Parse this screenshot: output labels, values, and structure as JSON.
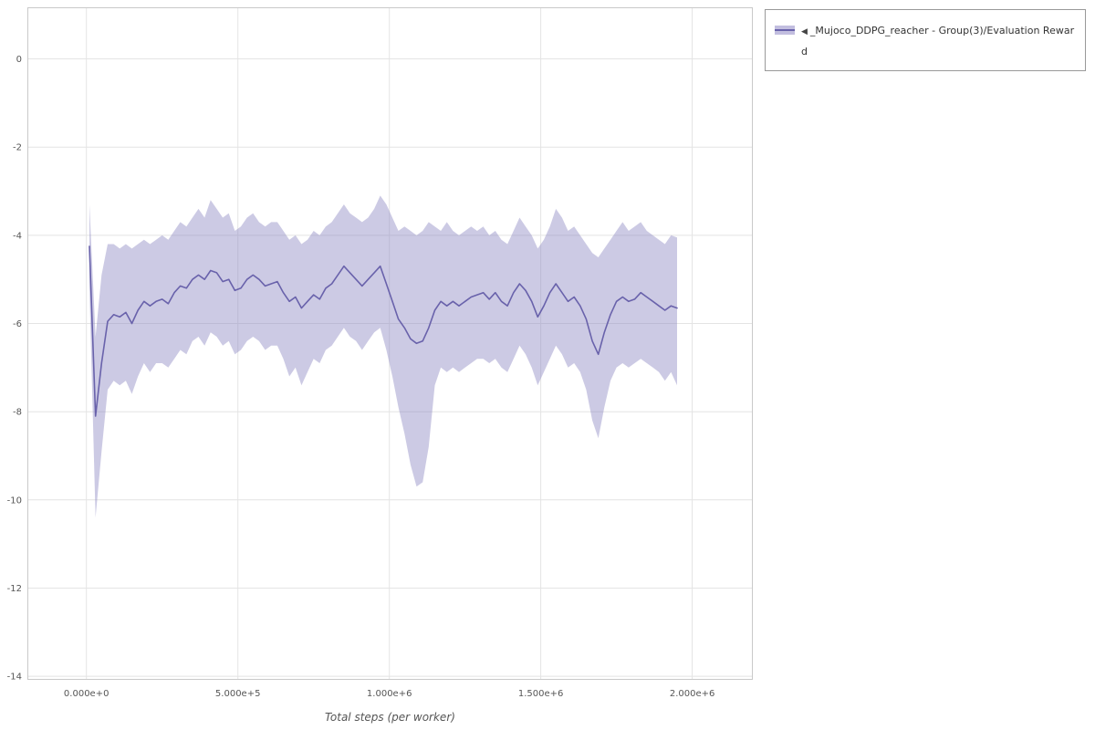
{
  "legend": {
    "arrow": "◀",
    "label": "_Mujoco_DDPG_reacher - Group(3)/Evaluation Reward"
  },
  "colors": {
    "line": "#6962ab",
    "band": "#8f89c4",
    "band_opacity": 0.45,
    "swatch_band_opacity": 0.55,
    "grid": "#e4e4e4",
    "border": "#c9c9c9",
    "tick_text": "#555555",
    "axis_title": "#555555",
    "legend_border": "#999999"
  },
  "chart_data": {
    "type": "line",
    "title": "",
    "xlabel": "Total steps (per worker)",
    "ylabel": "",
    "grid": true,
    "legend_position": "outside-top-right",
    "xlim": [
      -195000,
      2200000
    ],
    "ylim": [
      -14.08,
      1.17
    ],
    "x_ticks": [
      {
        "value": 0,
        "label": "0.000e+0"
      },
      {
        "value": 500000,
        "label": "5.000e+5"
      },
      {
        "value": 1000000,
        "label": "1.000e+6"
      },
      {
        "value": 1500000,
        "label": "1.500e+6"
      },
      {
        "value": 2000000,
        "label": "2.000e+6"
      }
    ],
    "y_ticks": [
      {
        "value": 0,
        "label": "0"
      },
      {
        "value": -2,
        "label": "-2"
      },
      {
        "value": -4,
        "label": "-4"
      },
      {
        "value": -6,
        "label": "-6"
      },
      {
        "value": -8,
        "label": "-8"
      },
      {
        "value": -10,
        "label": "-10"
      },
      {
        "value": -12,
        "label": "-12"
      },
      {
        "value": -14,
        "label": "-14"
      }
    ],
    "series": [
      {
        "name": "_Mujoco_DDPG_reacher - Group(3)/Evaluation Reward",
        "x": [
          10000,
          30000,
          50000,
          70000,
          90000,
          110000,
          130000,
          150000,
          170000,
          190000,
          210000,
          230000,
          250000,
          270000,
          290000,
          310000,
          330000,
          350000,
          370000,
          390000,
          410000,
          430000,
          450000,
          470000,
          490000,
          510000,
          530000,
          550000,
          570000,
          590000,
          610000,
          630000,
          650000,
          670000,
          690000,
          710000,
          730000,
          750000,
          770000,
          790000,
          810000,
          830000,
          850000,
          870000,
          890000,
          910000,
          930000,
          950000,
          970000,
          990000,
          1010000,
          1030000,
          1050000,
          1070000,
          1090000,
          1110000,
          1130000,
          1150000,
          1170000,
          1190000,
          1210000,
          1230000,
          1250000,
          1270000,
          1290000,
          1310000,
          1330000,
          1350000,
          1370000,
          1390000,
          1410000,
          1430000,
          1450000,
          1470000,
          1490000,
          1510000,
          1530000,
          1550000,
          1570000,
          1590000,
          1610000,
          1630000,
          1650000,
          1670000,
          1690000,
          1710000,
          1730000,
          1750000,
          1770000,
          1790000,
          1810000,
          1830000,
          1850000,
          1870000,
          1890000,
          1910000,
          1930000,
          1950000
        ],
        "mean": [
          -4.25,
          -8.1,
          -6.9,
          -5.95,
          -5.8,
          -5.85,
          -5.75,
          -6.0,
          -5.7,
          -5.5,
          -5.6,
          -5.5,
          -5.45,
          -5.55,
          -5.3,
          -5.15,
          -5.2,
          -5.0,
          -4.9,
          -5.0,
          -4.8,
          -4.85,
          -5.05,
          -5.0,
          -5.25,
          -5.2,
          -5.0,
          -4.9,
          -5.0,
          -5.15,
          -5.1,
          -5.05,
          -5.3,
          -5.5,
          -5.4,
          -5.65,
          -5.5,
          -5.35,
          -5.45,
          -5.2,
          -5.1,
          -4.9,
          -4.7,
          -4.85,
          -5.0,
          -5.15,
          -5.0,
          -4.85,
          -4.7,
          -5.1,
          -5.5,
          -5.9,
          -6.1,
          -6.35,
          -6.45,
          -6.4,
          -6.1,
          -5.7,
          -5.5,
          -5.6,
          -5.5,
          -5.6,
          -5.5,
          -5.4,
          -5.35,
          -5.3,
          -5.45,
          -5.3,
          -5.5,
          -5.6,
          -5.3,
          -5.1,
          -5.25,
          -5.5,
          -5.85,
          -5.6,
          -5.3,
          -5.1,
          -5.3,
          -5.5,
          -5.4,
          -5.6,
          -5.9,
          -6.4,
          -6.7,
          -6.2,
          -5.8,
          -5.5,
          -5.4,
          -5.5,
          -5.45,
          -5.3,
          -5.4,
          -5.5,
          -5.6,
          -5.7,
          -5.6,
          -5.65
        ],
        "upper": [
          -3.3,
          -6.3,
          -4.9,
          -4.2,
          -4.2,
          -4.3,
          -4.2,
          -4.3,
          -4.2,
          -4.1,
          -4.2,
          -4.1,
          -4.0,
          -4.1,
          -3.9,
          -3.7,
          -3.8,
          -3.6,
          -3.4,
          -3.6,
          -3.2,
          -3.4,
          -3.6,
          -3.5,
          -3.9,
          -3.8,
          -3.6,
          -3.5,
          -3.7,
          -3.8,
          -3.7,
          -3.7,
          -3.9,
          -4.1,
          -4.0,
          -4.2,
          -4.1,
          -3.9,
          -4.0,
          -3.8,
          -3.7,
          -3.5,
          -3.3,
          -3.5,
          -3.6,
          -3.7,
          -3.6,
          -3.4,
          -3.1,
          -3.3,
          -3.6,
          -3.9,
          -3.8,
          -3.9,
          -4.0,
          -3.9,
          -3.7,
          -3.8,
          -3.9,
          -3.7,
          -3.9,
          -4.0,
          -3.9,
          -3.8,
          -3.9,
          -3.8,
          -4.0,
          -3.9,
          -4.1,
          -4.2,
          -3.9,
          -3.6,
          -3.8,
          -4.0,
          -4.3,
          -4.1,
          -3.8,
          -3.4,
          -3.6,
          -3.9,
          -3.8,
          -4.0,
          -4.2,
          -4.4,
          -4.5,
          -4.3,
          -4.1,
          -3.9,
          -3.7,
          -3.9,
          -3.8,
          -3.7,
          -3.9,
          -4.0,
          -4.1,
          -4.2,
          -4.0,
          -4.05
        ],
        "lower": [
          -5.2,
          -10.4,
          -8.9,
          -7.5,
          -7.3,
          -7.4,
          -7.3,
          -7.6,
          -7.2,
          -6.9,
          -7.1,
          -6.9,
          -6.9,
          -7.0,
          -6.8,
          -6.6,
          -6.7,
          -6.4,
          -6.3,
          -6.5,
          -6.2,
          -6.3,
          -6.5,
          -6.4,
          -6.7,
          -6.6,
          -6.4,
          -6.3,
          -6.4,
          -6.6,
          -6.5,
          -6.5,
          -6.8,
          -7.2,
          -7.0,
          -7.4,
          -7.1,
          -6.8,
          -6.9,
          -6.6,
          -6.5,
          -6.3,
          -6.1,
          -6.3,
          -6.4,
          -6.6,
          -6.4,
          -6.2,
          -6.1,
          -6.6,
          -7.2,
          -7.9,
          -8.5,
          -9.2,
          -9.7,
          -9.6,
          -8.8,
          -7.4,
          -7.0,
          -7.1,
          -7.0,
          -7.1,
          -7.0,
          -6.9,
          -6.8,
          -6.8,
          -6.9,
          -6.8,
          -7.0,
          -7.1,
          -6.8,
          -6.5,
          -6.7,
          -7.0,
          -7.4,
          -7.1,
          -6.8,
          -6.5,
          -6.7,
          -7.0,
          -6.9,
          -7.1,
          -7.5,
          -8.2,
          -8.6,
          -7.9,
          -7.3,
          -7.0,
          -6.9,
          -7.0,
          -6.9,
          -6.8,
          -6.9,
          -7.0,
          -7.1,
          -7.3,
          -7.1,
          -7.4
        ]
      }
    ]
  }
}
